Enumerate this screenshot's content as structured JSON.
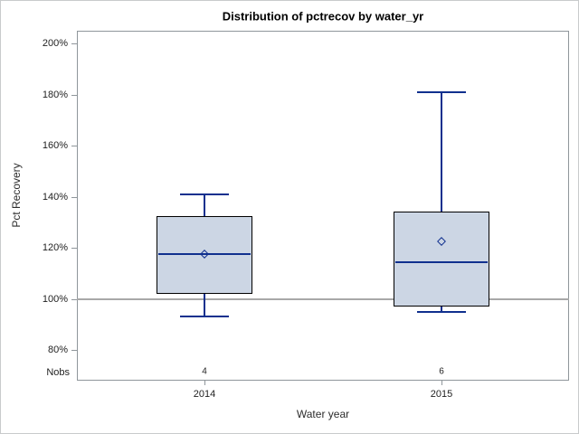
{
  "chart_data": {
    "type": "boxplot",
    "title": "Distribution of pctrecov by water_yr",
    "xlabel": "Water year",
    "ylabel": "Pct Recovery",
    "y_ticks": [
      200,
      180,
      160,
      140,
      120,
      100,
      80
    ],
    "y_tick_suffix": "%",
    "ylim": [
      68,
      205
    ],
    "reference_line": 100,
    "grid": false,
    "legend": "none",
    "nobs_row_label": "Nobs",
    "categories": [
      "2014",
      "2015"
    ],
    "boxes": [
      {
        "category": "2014",
        "nobs": "4",
        "whisker_low": 93,
        "q1": 102,
        "median": 117.5,
        "mean": 117.5,
        "q3": 132.5,
        "whisker_high": 141
      },
      {
        "category": "2015",
        "nobs": "6",
        "whisker_low": 95,
        "q1": 97,
        "median": 114.5,
        "mean": 122.5,
        "q3": 134,
        "whisker_high": 181
      }
    ],
    "colors": {
      "box_fill": "#ccd6e4",
      "box_border": "#000000",
      "line": "#10308e",
      "reference_line": "#a8a8a8",
      "frame": "#8f969b",
      "tick": "#8f969b",
      "text": "#1f1f1f"
    }
  }
}
